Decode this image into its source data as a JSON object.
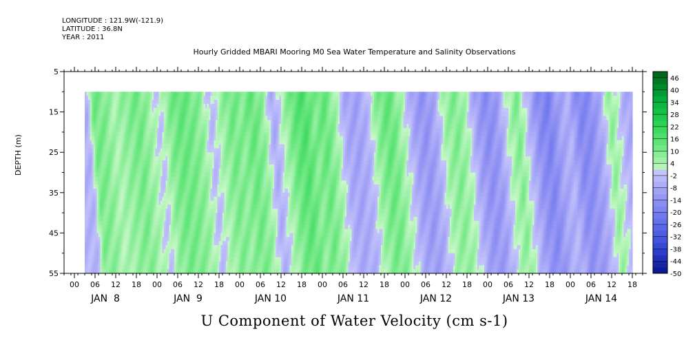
{
  "header": {
    "longitude": "LONGITUDE : 121.9W(-121.9)",
    "latitude": "LATITUDE : 36.8N",
    "year": "YEAR : 2011"
  },
  "chart_data": {
    "type": "heatmap",
    "title": "Hourly Gridded MBARI Mooring M0 Sea Water Temperature and Salinity Observations",
    "variable_label": "U Component of Water Velocity (cm s-1)",
    "ylabel": "DEPTH (m)",
    "y_axis": {
      "ticks": [
        5,
        15,
        25,
        35,
        45,
        55
      ],
      "range": [
        5,
        55
      ],
      "inverted": true
    },
    "x_axis": {
      "hour_ticks": [
        "00",
        "06",
        "12",
        "18",
        "00",
        "06",
        "12",
        "18",
        "00",
        "06",
        "12",
        "18",
        "00",
        "06",
        "12",
        "18",
        "00",
        "06",
        "12",
        "18",
        "00",
        "06",
        "12",
        "18",
        "00",
        "06",
        "12",
        "18"
      ],
      "day_labels": [
        "JAN  8",
        "JAN  9",
        "JAN 10",
        "JAN 11",
        "JAN 12",
        "JAN 13",
        "JAN 14"
      ]
    },
    "colorbar": {
      "labels": [
        46,
        40,
        34,
        28,
        22,
        16,
        10,
        4,
        -2,
        -8,
        -14,
        -20,
        -26,
        -32,
        -38,
        -44,
        -50
      ],
      "range": [
        -50,
        49
      ]
    },
    "data_depth_range": [
      10,
      55
    ],
    "data_time_range_hours_from_jan7_21": [
      6,
      165
    ],
    "approx_mean_u_by_time": [
      [
        6,
        -6
      ],
      [
        8,
        12
      ],
      [
        11,
        10
      ],
      [
        14,
        4
      ],
      [
        17,
        8
      ],
      [
        21,
        12
      ],
      [
        24,
        6
      ],
      [
        27,
        -2
      ],
      [
        30,
        10
      ],
      [
        33,
        14
      ],
      [
        36,
        12
      ],
      [
        39,
        8
      ],
      [
        42,
        -4
      ],
      [
        45,
        6
      ],
      [
        48,
        12
      ],
      [
        51,
        9
      ],
      [
        54,
        14
      ],
      [
        57,
        8
      ],
      [
        60,
        -8
      ],
      [
        63,
        4
      ],
      [
        66,
        14
      ],
      [
        69,
        18
      ],
      [
        72,
        10
      ],
      [
        75,
        14
      ],
      [
        78,
        6
      ],
      [
        81,
        -8
      ],
      [
        84,
        -10
      ],
      [
        87,
        -6
      ],
      [
        90,
        8
      ],
      [
        93,
        14
      ],
      [
        95,
        12
      ],
      [
        98,
        2
      ],
      [
        101,
        -10
      ],
      [
        104,
        -14
      ],
      [
        107,
        -8
      ],
      [
        110,
        6
      ],
      [
        113,
        10
      ],
      [
        116,
        4
      ],
      [
        119,
        -10
      ],
      [
        122,
        -16
      ],
      [
        125,
        -12
      ],
      [
        128,
        2
      ],
      [
        131,
        10
      ],
      [
        134,
        -4
      ],
      [
        137,
        -16
      ],
      [
        140,
        -20
      ],
      [
        143,
        -10
      ],
      [
        146,
        -6
      ],
      [
        149,
        -18
      ],
      [
        152,
        -16
      ],
      [
        155,
        -8
      ],
      [
        158,
        8
      ],
      [
        162,
        -6
      ],
      [
        165,
        -10
      ]
    ]
  }
}
